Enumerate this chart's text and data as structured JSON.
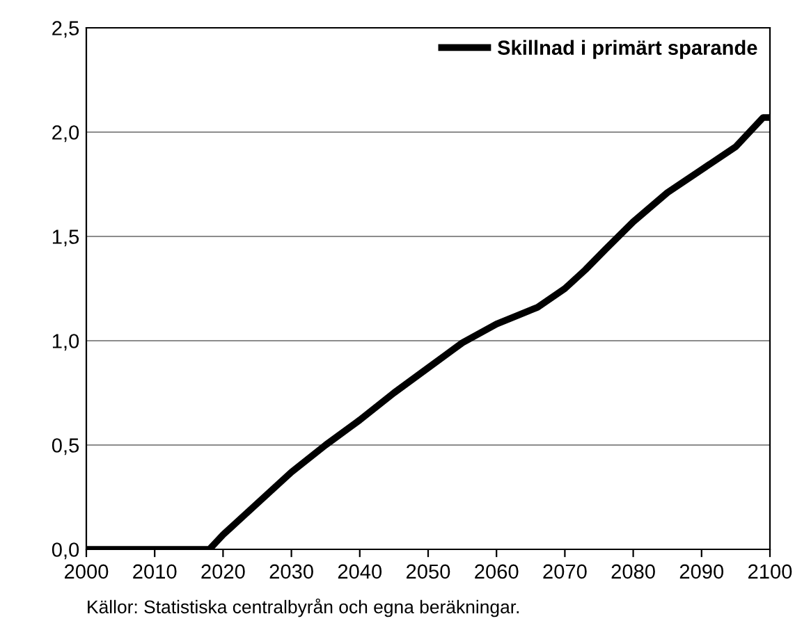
{
  "chart_data": {
    "type": "line",
    "x": [
      2000,
      2005,
      2010,
      2015,
      2018,
      2020,
      2022,
      2025,
      2030,
      2035,
      2040,
      2045,
      2050,
      2055,
      2060,
      2063,
      2066,
      2070,
      2073,
      2076,
      2080,
      2085,
      2090,
      2095,
      2099,
      2100
    ],
    "series": [
      {
        "name": "Skillnad i primärt sparande",
        "color": "#000000",
        "values": [
          0,
          0,
          0,
          0,
          0,
          0.07,
          0.13,
          0.22,
          0.37,
          0.5,
          0.62,
          0.75,
          0.87,
          0.99,
          1.08,
          1.12,
          1.16,
          1.25,
          1.34,
          1.44,
          1.57,
          1.71,
          1.82,
          1.93,
          2.07,
          2.07
        ]
      }
    ],
    "xlim": [
      2000,
      2100
    ],
    "xticks": [
      2000,
      2010,
      2020,
      2030,
      2040,
      2050,
      2060,
      2070,
      2080,
      2090,
      2100
    ],
    "ylim": [
      0,
      2.5
    ],
    "yticks": [
      {
        "value": 0,
        "label": "0,0"
      },
      {
        "value": 0.5,
        "label": "0,5"
      },
      {
        "value": 1,
        "label": "1,0"
      },
      {
        "value": 1.5,
        "label": "1,5"
      },
      {
        "value": 2,
        "label": "2,0"
      },
      {
        "value": 2.5,
        "label": "2,5"
      }
    ],
    "grid": "y",
    "legend": "top right",
    "line_style": "solid",
    "marker": "none",
    "annotations": [
      "Källor: Statistiska centralbyrån och egna beräkningar."
    ]
  }
}
